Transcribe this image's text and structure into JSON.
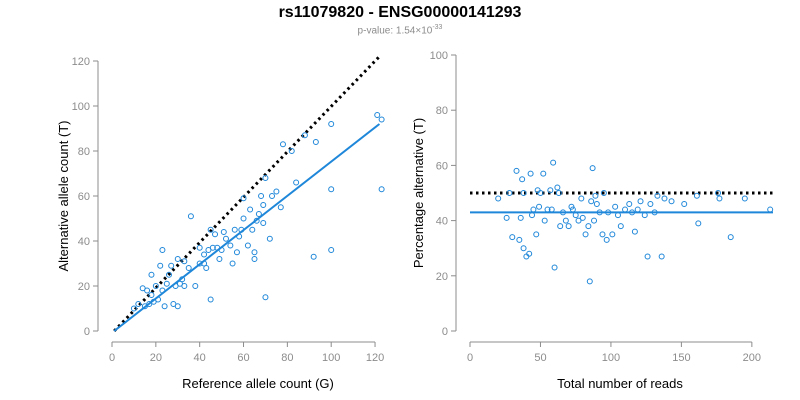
{
  "title": "rs11079820 - ENSG00000141293",
  "subtitle": {
    "prefix": "p-value: 1.54×10",
    "exponent": "-33"
  },
  "colors": {
    "points": "#1f87d9",
    "fit": "#1f87d9",
    "reference": "#000000",
    "axis": "#8c8c8c",
    "label": "#000000"
  },
  "chart_data": [
    {
      "type": "scatter",
      "xlabel": "Reference allele count (G)",
      "ylabel": "Alternative allele count (T)",
      "xlim": [
        0,
        125
      ],
      "ylim": [
        0,
        120
      ],
      "xticks": [
        0,
        20,
        40,
        60,
        80,
        100,
        120
      ],
      "yticks": [
        0,
        20,
        40,
        60,
        80,
        100,
        120
      ],
      "reference_line": {
        "style": "dotted",
        "from": [
          1,
          0
        ],
        "to": [
          122,
          122
        ]
      },
      "fit_line": {
        "style": "solid",
        "from": [
          1,
          0
        ],
        "to": [
          122,
          92
        ]
      },
      "points": [
        [
          10,
          10
        ],
        [
          12,
          12
        ],
        [
          14,
          19
        ],
        [
          15,
          11
        ],
        [
          16,
          18
        ],
        [
          17,
          12
        ],
        [
          18,
          25
        ],
        [
          18,
          16
        ],
        [
          19,
          13
        ],
        [
          20,
          20
        ],
        [
          21,
          14
        ],
        [
          22,
          29
        ],
        [
          23,
          36
        ],
        [
          23,
          18
        ],
        [
          24,
          11
        ],
        [
          25,
          21
        ],
        [
          26,
          25
        ],
        [
          27,
          29
        ],
        [
          28,
          12
        ],
        [
          29,
          20
        ],
        [
          30,
          32
        ],
        [
          30,
          11
        ],
        [
          31,
          21
        ],
        [
          32,
          23
        ],
        [
          33,
          20
        ],
        [
          33,
          31
        ],
        [
          35,
          28
        ],
        [
          36,
          51
        ],
        [
          38,
          20
        ],
        [
          40,
          37
        ],
        [
          40,
          30
        ],
        [
          42,
          30
        ],
        [
          42,
          34
        ],
        [
          43,
          28
        ],
        [
          44,
          36
        ],
        [
          45,
          45
        ],
        [
          45,
          14
        ],
        [
          46,
          37
        ],
        [
          47,
          43
        ],
        [
          48,
          37
        ],
        [
          49,
          32
        ],
        [
          50,
          36
        ],
        [
          51,
          44
        ],
        [
          52,
          41
        ],
        [
          54,
          38
        ],
        [
          55,
          30
        ],
        [
          56,
          45
        ],
        [
          57,
          35
        ],
        [
          58,
          42
        ],
        [
          59,
          45
        ],
        [
          60,
          59
        ],
        [
          60,
          50
        ],
        [
          62,
          38
        ],
        [
          63,
          54
        ],
        [
          64,
          45
        ],
        [
          65,
          32
        ],
        [
          65,
          35
        ],
        [
          66,
          49
        ],
        [
          67,
          52
        ],
        [
          68,
          60
        ],
        [
          69,
          48
        ],
        [
          69,
          56
        ],
        [
          70,
          68
        ],
        [
          70,
          15
        ],
        [
          72,
          41
        ],
        [
          73,
          60
        ],
        [
          75,
          62
        ],
        [
          77,
          55
        ],
        [
          78,
          83
        ],
        [
          82,
          80
        ],
        [
          84,
          66
        ],
        [
          88,
          87
        ],
        [
          92,
          33
        ],
        [
          93,
          84
        ],
        [
          100,
          92
        ],
        [
          100,
          63
        ],
        [
          100,
          36
        ],
        [
          121,
          96
        ],
        [
          123,
          94
        ],
        [
          123,
          63
        ]
      ]
    },
    {
      "type": "scatter",
      "xlabel": "Total number of reads",
      "ylabel": "Percentage alternative (T)",
      "xlim": [
        0,
        215
      ],
      "ylim": [
        0,
        100
      ],
      "xticks": [
        0,
        50,
        100,
        150,
        200
      ],
      "yticks": [
        0,
        20,
        40,
        60,
        80,
        100
      ],
      "reference_line": {
        "style": "dotted",
        "y": 50
      },
      "fit_line": {
        "style": "solid",
        "y": 43
      },
      "points": [
        [
          20,
          48
        ],
        [
          26,
          41
        ],
        [
          28,
          50
        ],
        [
          30,
          34
        ],
        [
          33,
          58
        ],
        [
          35,
          33
        ],
        [
          36,
          41
        ],
        [
          37,
          55
        ],
        [
          38,
          50
        ],
        [
          38,
          30
        ],
        [
          40,
          27
        ],
        [
          42,
          28
        ],
        [
          43,
          57
        ],
        [
          44,
          42
        ],
        [
          45,
          44
        ],
        [
          47,
          35
        ],
        [
          48,
          51
        ],
        [
          49,
          45
        ],
        [
          50,
          50
        ],
        [
          52,
          57
        ],
        [
          53,
          40
        ],
        [
          55,
          44
        ],
        [
          57,
          51
        ],
        [
          58,
          44
        ],
        [
          59,
          61
        ],
        [
          60,
          23
        ],
        [
          62,
          52
        ],
        [
          63,
          50
        ],
        [
          64,
          38
        ],
        [
          66,
          43
        ],
        [
          68,
          40
        ],
        [
          70,
          38
        ],
        [
          72,
          45
        ],
        [
          73,
          44
        ],
        [
          75,
          42
        ],
        [
          77,
          40
        ],
        [
          79,
          48
        ],
        [
          80,
          41
        ],
        [
          82,
          35
        ],
        [
          84,
          38
        ],
        [
          85,
          18
        ],
        [
          86,
          47
        ],
        [
          87,
          59
        ],
        [
          88,
          40
        ],
        [
          89,
          49
        ],
        [
          90,
          46
        ],
        [
          92,
          43
        ],
        [
          94,
          35
        ],
        [
          95,
          50
        ],
        [
          97,
          33
        ],
        [
          98,
          43
        ],
        [
          101,
          35
        ],
        [
          103,
          45
        ],
        [
          105,
          42
        ],
        [
          107,
          38
        ],
        [
          110,
          44
        ],
        [
          113,
          46
        ],
        [
          115,
          43
        ],
        [
          117,
          36
        ],
        [
          119,
          44
        ],
        [
          121,
          47
        ],
        [
          124,
          42
        ],
        [
          126,
          27
        ],
        [
          128,
          46
        ],
        [
          131,
          43
        ],
        [
          133,
          49
        ],
        [
          136,
          27
        ],
        [
          138,
          48
        ],
        [
          143,
          47
        ],
        [
          152,
          46
        ],
        [
          161,
          49
        ],
        [
          162,
          39
        ],
        [
          176,
          50
        ],
        [
          177,
          48
        ],
        [
          185,
          34
        ],
        [
          195,
          48
        ],
        [
          213,
          44
        ]
      ]
    }
  ]
}
